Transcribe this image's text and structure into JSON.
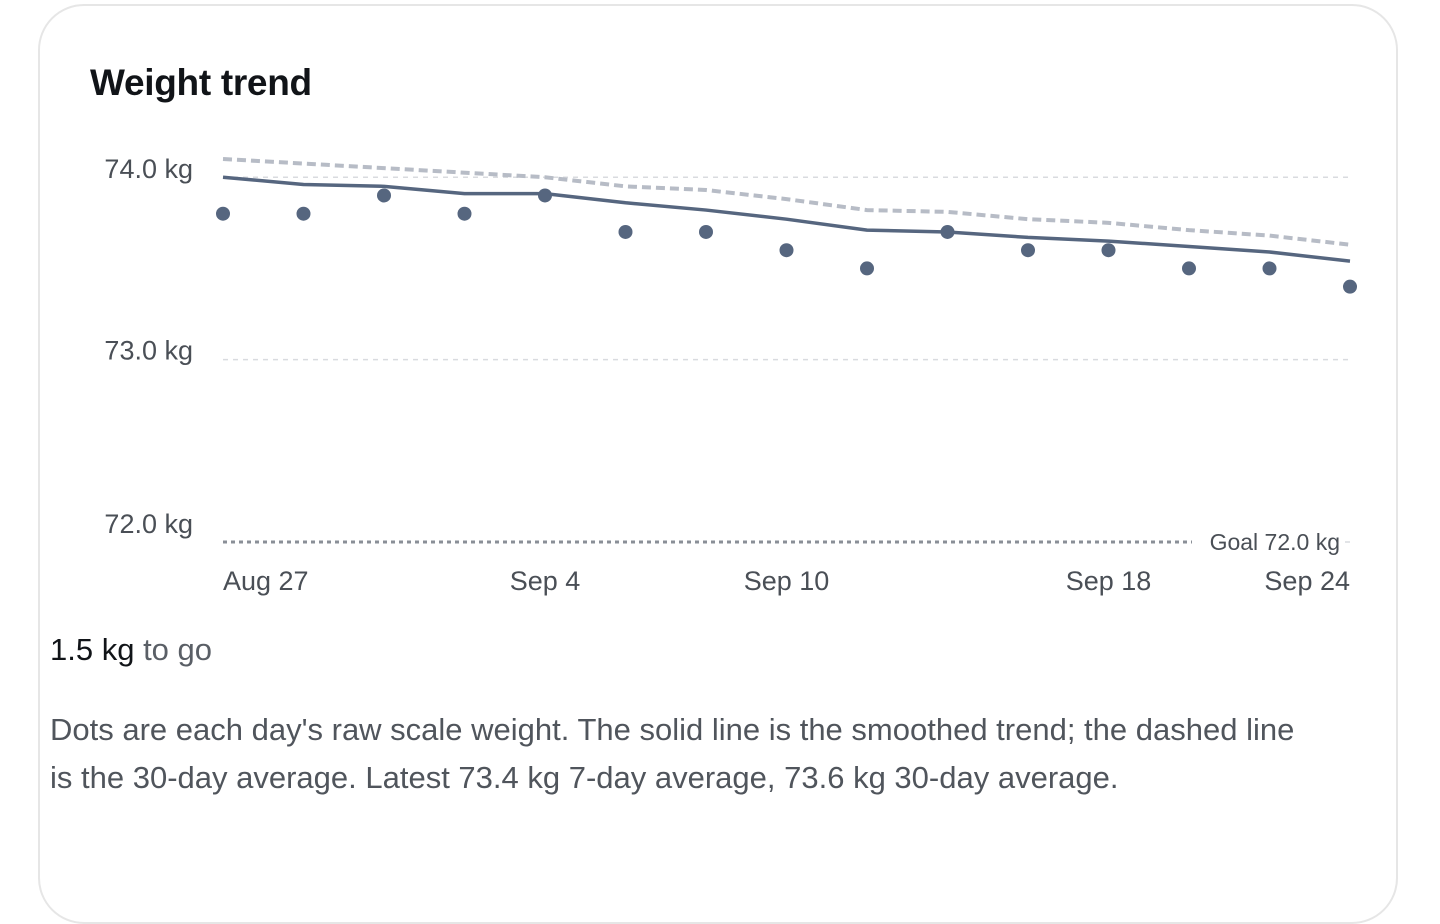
{
  "card": {
    "title": "Weight trend"
  },
  "summary": {
    "amount": "1.5 kg",
    "suffix": " to go"
  },
  "description": "Dots are each day's raw scale weight. The solid line is the smoothed trend; the dashed line is the 30-day average. Latest 73.4 kg 7-day average, 73.6 kg 30-day average.",
  "colors": {
    "series": "#56667f",
    "average": "#b7bcc6",
    "grid": "#d9dbdf",
    "goal_line": "#8a8f97",
    "axis_text": "#4a4f56"
  },
  "chart_data": {
    "type": "line",
    "x_dates": [
      "Aug 27",
      "Aug 28",
      "Aug 29",
      "Aug 30",
      "Aug 31",
      "Sep 1",
      "Sep 2",
      "Sep 3",
      "Sep 4",
      "Sep 5",
      "Sep 6",
      "Sep 7",
      "Sep 8",
      "Sep 9",
      "Sep 10",
      "Sep 11",
      "Sep 12",
      "Sep 13",
      "Sep 14",
      "Sep 15",
      "Sep 16",
      "Sep 17",
      "Sep 18",
      "Sep 19",
      "Sep 20",
      "Sep 21",
      "Sep 22",
      "Sep 23",
      "Sep 24"
    ],
    "x_tick_labels": [
      "Aug 27",
      "Sep 4",
      "Sep 10",
      "Sep 18",
      "Sep 24"
    ],
    "y_tick_labels": [
      "74.0 kg",
      "73.0 kg",
      "72.0 kg"
    ],
    "y_ticks": [
      74.0,
      73.0,
      72.0
    ],
    "ylim": [
      72.0,
      74.1
    ],
    "grid": true,
    "series": [
      {
        "style": "dots",
        "points": [
          {
            "x": "Aug 27",
            "y": 73.8
          },
          {
            "x": "Aug 29",
            "y": 73.8
          },
          {
            "x": "Aug 31",
            "y": 73.9
          },
          {
            "x": "Sep 2",
            "y": 73.8
          },
          {
            "x": "Sep 4",
            "y": 73.9
          },
          {
            "x": "Sep 6",
            "y": 73.7
          },
          {
            "x": "Sep 8",
            "y": 73.7
          },
          {
            "x": "Sep 10",
            "y": 73.6
          },
          {
            "x": "Sep 12",
            "y": 73.5
          },
          {
            "x": "Sep 14",
            "y": 73.7
          },
          {
            "x": "Sep 16",
            "y": 73.6
          },
          {
            "x": "Sep 18",
            "y": 73.6
          },
          {
            "x": "Sep 20",
            "y": 73.5
          },
          {
            "x": "Sep 22",
            "y": 73.5
          },
          {
            "x": "Sep 24",
            "y": 73.4
          }
        ]
      },
      {
        "style": "solid-line",
        "points": [
          {
            "x": "Aug 27",
            "y": 74.0
          },
          {
            "x": "Aug 29",
            "y": 73.96
          },
          {
            "x": "Aug 31",
            "y": 73.95
          },
          {
            "x": "Sep 2",
            "y": 73.91
          },
          {
            "x": "Sep 4",
            "y": 73.91
          },
          {
            "x": "Sep 6",
            "y": 73.86
          },
          {
            "x": "Sep 8",
            "y": 73.82
          },
          {
            "x": "Sep 10",
            "y": 73.77
          },
          {
            "x": "Sep 12",
            "y": 73.71
          },
          {
            "x": "Sep 14",
            "y": 73.7
          },
          {
            "x": "Sep 16",
            "y": 73.67
          },
          {
            "x": "Sep 18",
            "y": 73.65
          },
          {
            "x": "Sep 20",
            "y": 73.62
          },
          {
            "x": "Sep 22",
            "y": 73.59
          },
          {
            "x": "Sep 24",
            "y": 73.54
          }
        ]
      },
      {
        "style": "dashed-line",
        "points": [
          {
            "x": "Aug 27",
            "y": 74.1
          },
          {
            "x": "Aug 31",
            "y": 74.05
          },
          {
            "x": "Sep 4",
            "y": 74.0
          },
          {
            "x": "Sep 6",
            "y": 73.95
          },
          {
            "x": "Sep 8",
            "y": 73.93
          },
          {
            "x": "Sep 10",
            "y": 73.88
          },
          {
            "x": "Sep 12",
            "y": 73.82
          },
          {
            "x": "Sep 14",
            "y": 73.81
          },
          {
            "x": "Sep 16",
            "y": 73.77
          },
          {
            "x": "Sep 18",
            "y": 73.75
          },
          {
            "x": "Sep 20",
            "y": 73.71
          },
          {
            "x": "Sep 22",
            "y": 73.68
          },
          {
            "x": "Sep 24",
            "y": 73.63
          }
        ]
      }
    ],
    "goal": {
      "value": 72.0,
      "label": "Goal 72.0 kg"
    }
  }
}
